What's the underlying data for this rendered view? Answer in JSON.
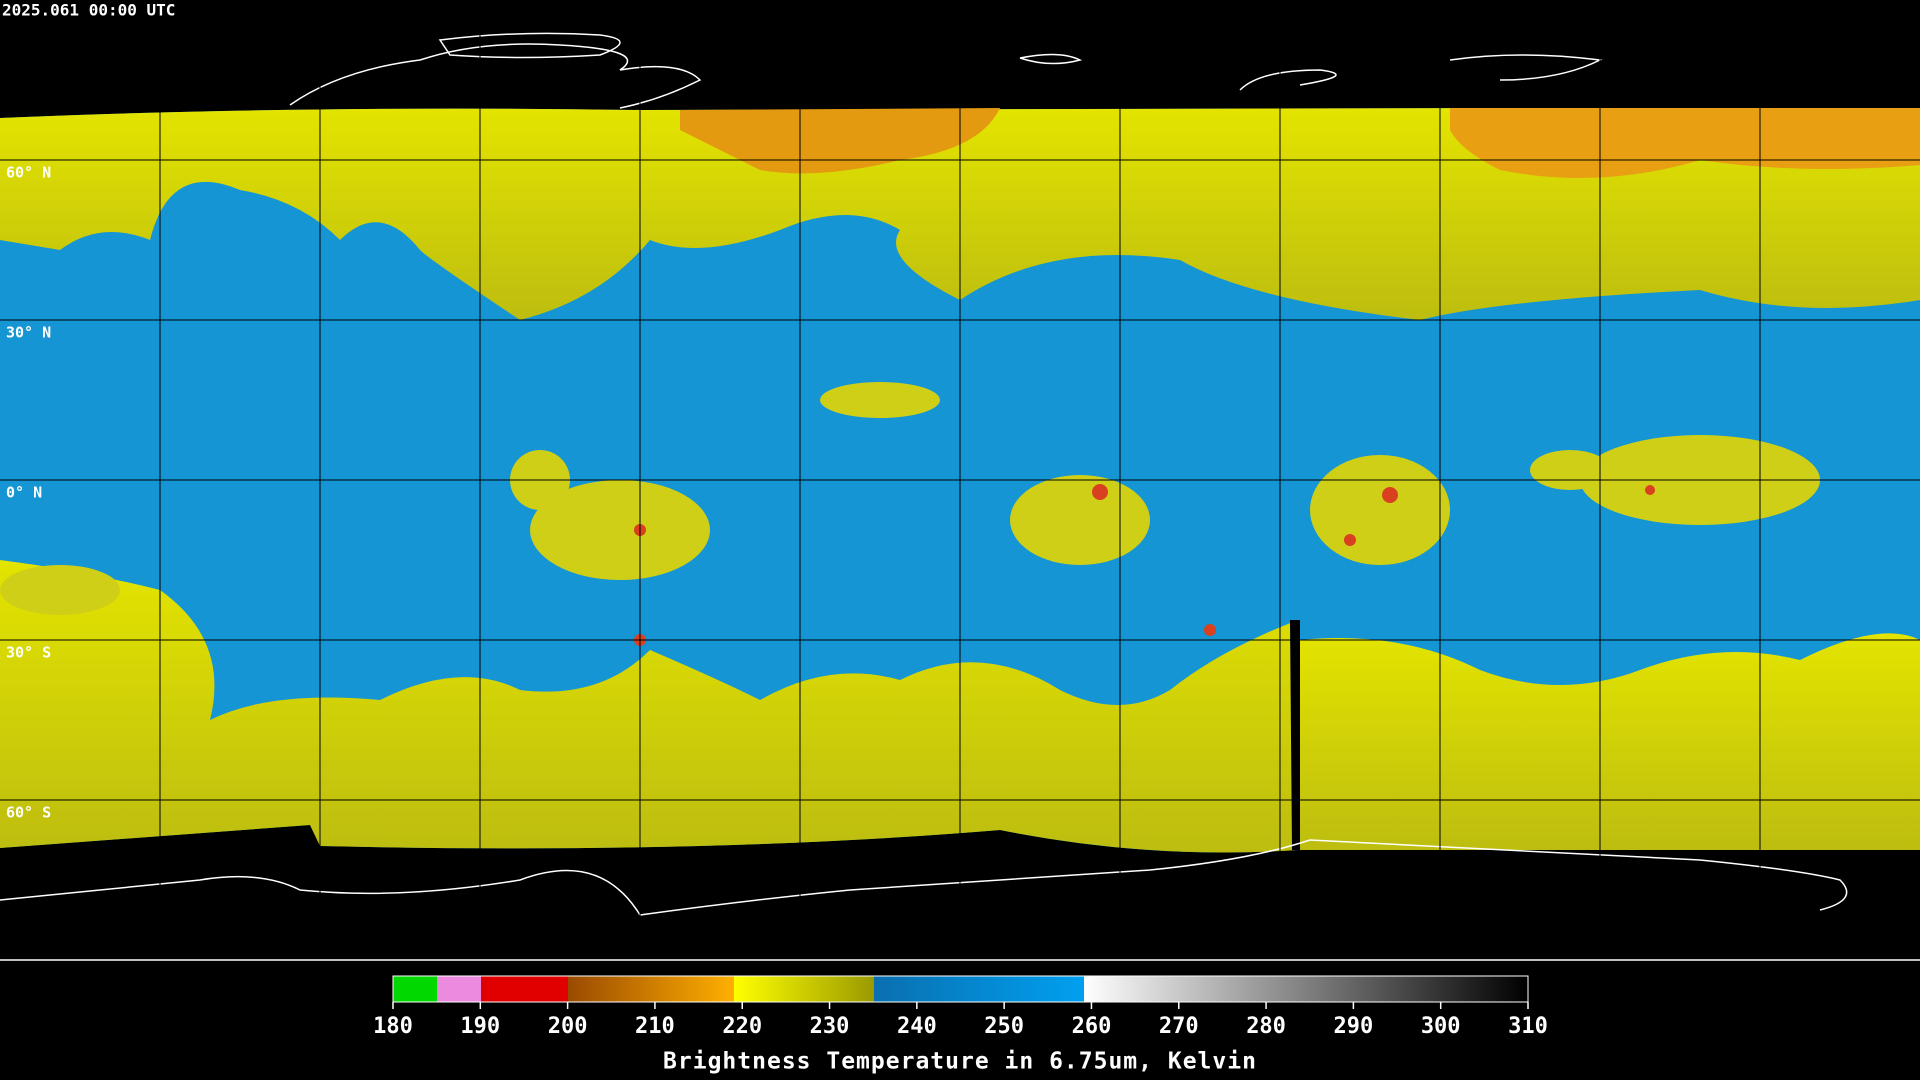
{
  "header": {
    "timestamp": "2025.061 00:00 UTC"
  },
  "map": {
    "latitudes": [
      {
        "value": 60,
        "label": "60° N"
      },
      {
        "value": 30,
        "label": "30° N"
      },
      {
        "value": 0,
        "label": "0° N"
      },
      {
        "value": -30,
        "label": "30° S"
      },
      {
        "value": -60,
        "label": "60° S"
      }
    ]
  },
  "colorbar": {
    "title": "Brightness Temperature in 6.75um, Kelvin",
    "lim": [
      180,
      310
    ],
    "ticks": [
      180,
      190,
      200,
      210,
      220,
      230,
      240,
      250,
      260,
      270,
      280,
      290,
      300,
      310
    ]
  }
}
